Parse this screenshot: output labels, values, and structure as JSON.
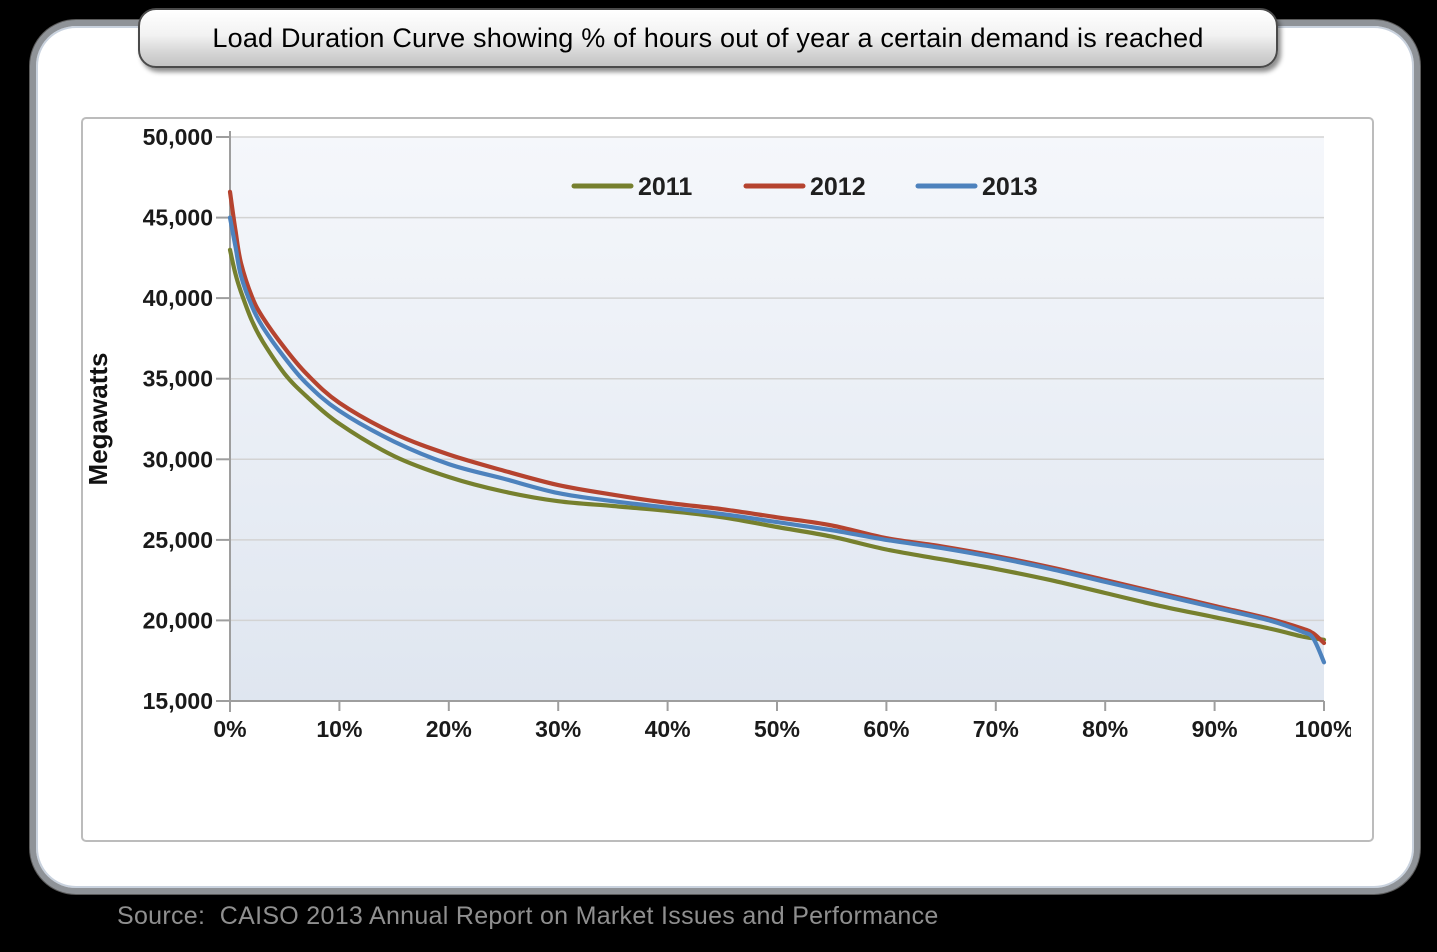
{
  "banner": {
    "title": "Load Duration Curve showing % of hours out of year a certain demand is reached"
  },
  "footer": {
    "source_note": "Source:  CAISO 2013 Annual Report on Market Issues and Performance"
  },
  "chart_data": {
    "type": "line",
    "title": "Load Duration Curve showing % of hours out of year a certain demand is reached",
    "xlabel": "",
    "ylabel": "Megawatts",
    "xlim": [
      0,
      100
    ],
    "ylim": [
      15000,
      50000
    ],
    "grid": "horizontal",
    "legend_position": "top-center",
    "x_tick_values": [
      0,
      10,
      20,
      30,
      40,
      50,
      60,
      70,
      80,
      90,
      100
    ],
    "x_tick_labels": [
      "0%",
      "10%",
      "20%",
      "30%",
      "40%",
      "50%",
      "60%",
      "70%",
      "80%",
      "90%",
      "100%"
    ],
    "y_tick_values": [
      50000,
      45000,
      40000,
      35000,
      30000,
      25000,
      20000,
      15000
    ],
    "y_tick_labels": [
      "50,000",
      "45,000",
      "40,000",
      "35,000",
      "30,000",
      "25,000",
      "20,000",
      "15,000"
    ],
    "x": [
      0,
      0.5,
      1,
      2,
      3,
      5,
      7,
      10,
      15,
      20,
      25,
      30,
      35,
      40,
      45,
      50,
      55,
      60,
      65,
      70,
      75,
      80,
      85,
      90,
      95,
      98,
      99,
      100
    ],
    "x_unit": "percent of hours of year",
    "series": [
      {
        "name": "2011",
        "color": "#76802e",
        "values": [
          43000,
          41500,
          40400,
          38600,
          37300,
          35300,
          33900,
          32200,
          30200,
          28900,
          28000,
          27400,
          27100,
          26800,
          26400,
          25800,
          25200,
          24400,
          23800,
          23200,
          22500,
          21700,
          20900,
          20200,
          19500,
          19000,
          18900,
          18800
        ]
      },
      {
        "name": "2012",
        "color": "#b5432f",
        "values": [
          46600,
          44200,
          42200,
          40100,
          38800,
          36900,
          35300,
          33500,
          31600,
          30300,
          29300,
          28400,
          27800,
          27300,
          26900,
          26400,
          25900,
          25100,
          24600,
          24000,
          23300,
          22500,
          21700,
          20900,
          20100,
          19500,
          19200,
          18600
        ]
      },
      {
        "name": "2013",
        "color": "#4d82bd",
        "values": [
          45000,
          43200,
          41400,
          39500,
          38200,
          36300,
          34700,
          33000,
          31100,
          29700,
          28800,
          27900,
          27400,
          27000,
          26600,
          26100,
          25600,
          25000,
          24500,
          23900,
          23200,
          22400,
          21600,
          20800,
          20000,
          19300,
          18900,
          17400
        ]
      }
    ],
    "plot_background": {
      "top": "#f5f7fb",
      "bottom": "#dfe6f0"
    },
    "gridline_color": "#d3d3d3",
    "axis_color": "#9e9e9e"
  }
}
